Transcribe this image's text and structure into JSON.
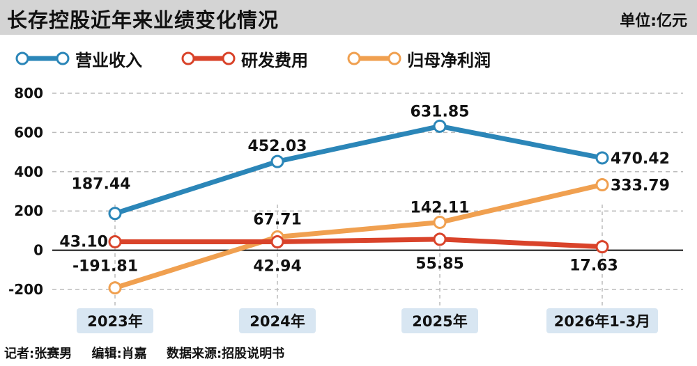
{
  "header": {
    "title": "长存控股近年来业绩变化情况",
    "unit": "单位:亿元"
  },
  "footer": {
    "reporter": "记者:张赛男",
    "editor": "编辑:肖嘉",
    "source": "数据来源:招股说明书"
  },
  "colors": {
    "revenue": "#2b86b8",
    "rd": "#d9432a",
    "profit": "#f0a050",
    "background": "#ffffff",
    "topbar": "#d4d4d4",
    "xlabel_box": "#d8e6f2",
    "grid": "#bbbbbb"
  },
  "chart_data": {
    "type": "line",
    "categories": [
      "2023年",
      "2024年",
      "2025年",
      "2026年1-3月"
    ],
    "series": [
      {
        "name": "营业收入",
        "values": [
          187.44,
          452.03,
          631.85,
          470.42
        ],
        "labels": [
          "187.44",
          "452.03",
          "631.85",
          "470.42"
        ]
      },
      {
        "name": "研发费用",
        "values": [
          43.1,
          42.94,
          55.85,
          17.63
        ],
        "labels": [
          "43.10",
          "42.94",
          "55.85",
          "17.63"
        ]
      },
      {
        "name": "归母净利润",
        "values": [
          -191.81,
          67.71,
          142.11,
          333.79
        ],
        "labels": [
          "-191.81",
          "67.71",
          "142.11",
          "333.79"
        ]
      }
    ],
    "ylim": [
      -200,
      800
    ],
    "yticks": [
      800,
      600,
      400,
      200,
      0,
      -200
    ],
    "ytick_labels": [
      "800",
      "600",
      "400",
      "200",
      "0",
      "-200"
    ],
    "grid": true,
    "legend_position": "top-left"
  }
}
